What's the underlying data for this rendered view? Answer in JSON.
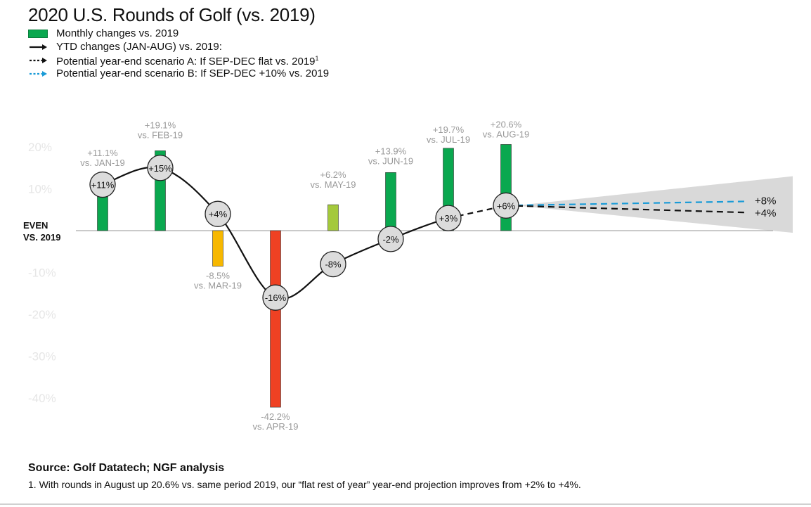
{
  "chart_data": {
    "type": "bar",
    "title": "2020 U.S. Rounds of Golf (vs. 2019)",
    "ylim": [
      -45,
      25
    ],
    "yticks": [
      "20%",
      "10%",
      "EVEN\nVS. 2019",
      "-10%",
      "-20%",
      "-30%",
      "-40%"
    ],
    "ytick_values": [
      20,
      10,
      0,
      -10,
      -20,
      -30,
      -40
    ],
    "categories": [
      "JAN",
      "FEB",
      "MAR",
      "APR",
      "MAY",
      "JUN",
      "JUL",
      "AUG"
    ],
    "series": [
      {
        "name": "Monthly changes vs. 2019",
        "values": [
          11.1,
          19.1,
          -8.5,
          -42.2,
          6.2,
          13.9,
          19.7,
          20.6
        ],
        "labels": [
          "+11.1%",
          "+19.1%",
          "-8.5%",
          "-42.2%",
          "+6.2%",
          "+13.9%",
          "+19.7%",
          "+20.6%"
        ],
        "sublabels": [
          "vs. JAN-19",
          "vs. FEB-19",
          "vs. MAR-19",
          "vs. APR-19",
          "vs. MAY-19",
          "vs. JUN-19",
          "vs. JUL-19",
          "vs. AUG-19"
        ],
        "colors": [
          "#0aa84f",
          "#0aa84f",
          "#f7b800",
          "#ef4123",
          "#a4c93c",
          "#0aa84f",
          "#0aa84f",
          "#0aa84f"
        ]
      },
      {
        "name": "YTD changes (JAN-AUG) vs. 2019:",
        "values": [
          11,
          15,
          4,
          -16,
          -8,
          -2,
          3,
          6
        ],
        "labels": [
          "+11%",
          "+15%",
          "+4%",
          "-16%",
          "-8%",
          "-2%",
          "+3%",
          "+6%"
        ]
      }
    ],
    "scenarios": [
      {
        "name": "Potential year-end scenario A: If SEP-DEC flat vs. 2019",
        "footnote_mark": "1",
        "end_value": 4,
        "label": "+4%",
        "color": "#111111"
      },
      {
        "name": "Potential year-end scenario B: If SEP-DEC +10% vs. 2019",
        "end_value": 8,
        "label": "+8%",
        "color": "#1a9bd7"
      }
    ]
  },
  "footer": {
    "source": "Source: Golf Datatech; NGF analysis",
    "footnote": "1. With rounds in August up 20.6% vs. same period 2019, our “flat rest of year” year-end projection improves from +2% to +4%."
  }
}
